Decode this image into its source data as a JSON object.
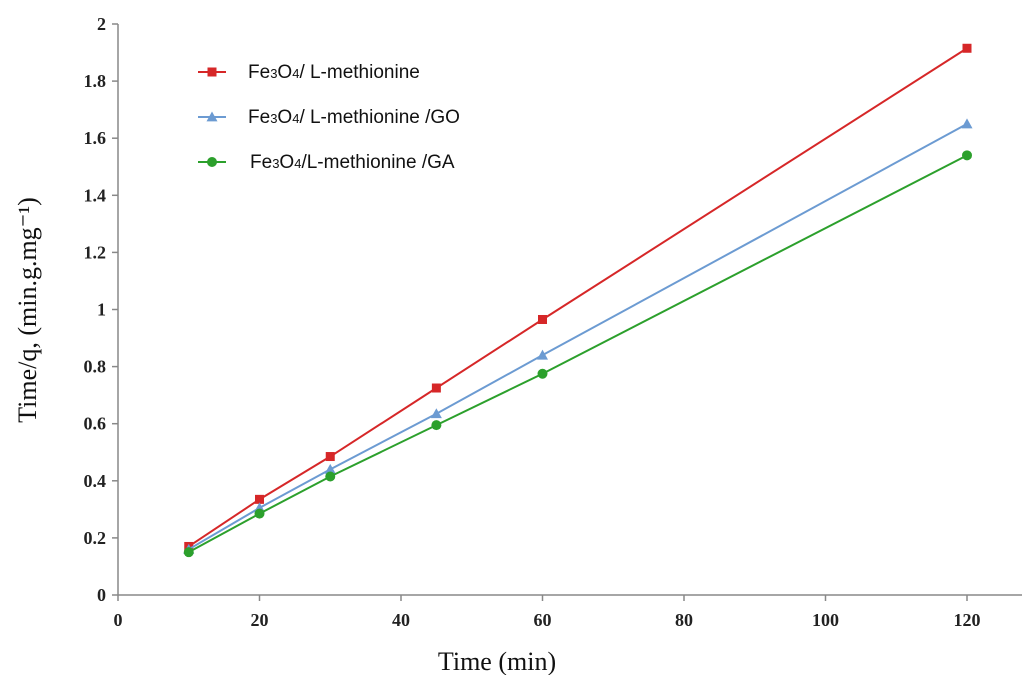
{
  "chart_data": {
    "type": "line",
    "title": "",
    "xlabel": "Time (min)",
    "ylabel": "Time/q, (min.g.mg⁻¹)",
    "xlim": [
      0,
      128
    ],
    "ylim": [
      0,
      2
    ],
    "xticks": [
      0,
      20,
      40,
      60,
      80,
      100,
      120
    ],
    "yticks": [
      0,
      0.2,
      0.4,
      0.6,
      0.8,
      1,
      1.2,
      1.4,
      1.6,
      1.8,
      2
    ],
    "ytick_labels": [
      "0",
      "0.2",
      "0.4",
      "0.6",
      "0.8",
      "1",
      "1.2",
      "1.4",
      "1.6",
      "1.8",
      "2"
    ],
    "grid": false,
    "legend_position": "top-left",
    "x": [
      10,
      20,
      30,
      45,
      60,
      120
    ],
    "series": [
      {
        "name": "Fe3O4/ L-methionine",
        "legend": {
          "pre": "Fe",
          "sub1": "3",
          "mid": "O",
          "sub2": "4",
          "post": "/ L-methionine"
        },
        "color": "#d62728",
        "marker": "square",
        "values": [
          0.17,
          0.335,
          0.485,
          0.725,
          0.965,
          1.915
        ]
      },
      {
        "name": "Fe3O4/ L-methionine /GO",
        "legend": {
          "pre": "Fe",
          "sub1": "3",
          "mid": "O",
          "sub2": "4",
          "post": "/ L-methionine /GO"
        },
        "color": "#6c9bd2",
        "marker": "triangle",
        "values": [
          0.16,
          0.305,
          0.44,
          0.635,
          0.84,
          1.65
        ]
      },
      {
        "name": "Fe3O4/L-methionine /GA",
        "legend": {
          "pre": "Fe",
          "sub1": "3",
          "mid": "O",
          "sub2": "4",
          "post": "/L-methionine /GA"
        },
        "color": "#2ca02c",
        "marker": "circle",
        "values": [
          0.15,
          0.285,
          0.415,
          0.595,
          0.775,
          1.54
        ]
      }
    ]
  }
}
